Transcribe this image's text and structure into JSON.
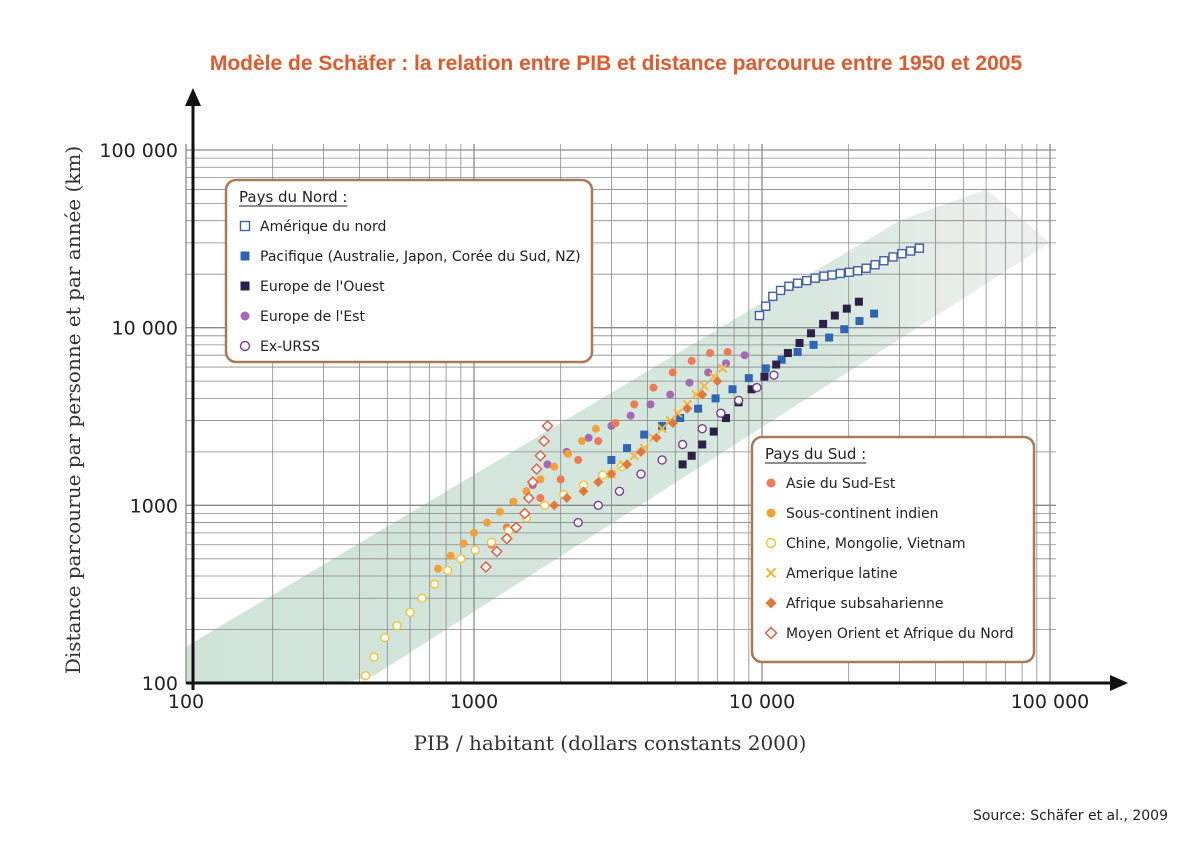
{
  "colors": {
    "title": "#e05a2b",
    "band": "#cfe3d8",
    "grid": "#8a8a8a",
    "legend_border": "#a87a58"
  },
  "source": "Source: Schäfer et al., 2009",
  "chart_data": {
    "type": "scatter",
    "title": "Modèle de Schäfer : la relation entre PIB et distance parcourue entre 1950 et 2005",
    "xlabel": "PIB / habitant (dollars constants 2000)",
    "ylabel": "Distance parcourue par personne et par année (km)",
    "x_scale": "log",
    "y_scale": "log",
    "xlim": [
      100,
      100000
    ],
    "ylim": [
      100,
      100000
    ],
    "grid": true,
    "x_ticks": [
      {
        "value": 100,
        "label": "100"
      },
      {
        "value": 1000,
        "label": "1000"
      },
      {
        "value": 10000,
        "label": "10 000"
      },
      {
        "value": 100000,
        "label": "100 000"
      }
    ],
    "y_ticks": [
      {
        "value": 100,
        "label": "100"
      },
      {
        "value": 1000,
        "label": "1000"
      },
      {
        "value": 10000,
        "label": "10 000"
      },
      {
        "value": 100000,
        "label": "100 000"
      }
    ],
    "band": {
      "lower": [
        [
          100,
          60
        ],
        [
          450,
          110
        ],
        [
          100000,
          30000
        ]
      ],
      "upper": [
        [
          100,
          160
        ],
        [
          30000,
          40000
        ],
        [
          60000,
          60000
        ]
      ]
    },
    "legends": [
      {
        "title": "Pays du Nord :",
        "position": "top-left",
        "series": [
          0,
          1,
          2,
          3,
          4
        ]
      },
      {
        "title": "Pays du Sud :",
        "position": "bottom-right",
        "series": [
          5,
          6,
          7,
          8,
          9,
          10
        ]
      }
    ],
    "series": [
      {
        "name": "Amérique du nord",
        "marker": "square-open",
        "color": "#3f5fa8",
        "points": [
          [
            9800,
            11700
          ],
          [
            10300,
            13200
          ],
          [
            10900,
            15000
          ],
          [
            11600,
            16200
          ],
          [
            12400,
            17100
          ],
          [
            13300,
            17800
          ],
          [
            14300,
            18400
          ],
          [
            15300,
            19000
          ],
          [
            16400,
            19500
          ],
          [
            17500,
            19800
          ],
          [
            18700,
            20200
          ],
          [
            20100,
            20500
          ],
          [
            21500,
            20900
          ],
          [
            23000,
            21600
          ],
          [
            24700,
            22600
          ],
          [
            26500,
            23800
          ],
          [
            28500,
            25000
          ],
          [
            30600,
            26100
          ],
          [
            32800,
            27000
          ],
          [
            35200,
            28000
          ]
        ]
      },
      {
        "name": "Pacifique (Australie, Japon, Corée du Sud, NZ)",
        "marker": "square",
        "color": "#2f66b3",
        "points": [
          [
            3000,
            1800
          ],
          [
            3400,
            2100
          ],
          [
            3900,
            2500
          ],
          [
            4500,
            2800
          ],
          [
            5200,
            3100
          ],
          [
            6000,
            3500
          ],
          [
            6900,
            4000
          ],
          [
            7900,
            4500
          ],
          [
            9000,
            5200
          ],
          [
            10300,
            5900
          ],
          [
            11700,
            6600
          ],
          [
            13300,
            7300
          ],
          [
            15100,
            8000
          ],
          [
            17100,
            8800
          ],
          [
            19300,
            9800
          ],
          [
            21800,
            10900
          ],
          [
            24500,
            12000
          ]
        ]
      },
      {
        "name": "Europe de l'Ouest",
        "marker": "square",
        "color": "#2b2148",
        "points": [
          [
            5300,
            1700
          ],
          [
            5700,
            1900
          ],
          [
            6200,
            2200
          ],
          [
            6800,
            2600
          ],
          [
            7500,
            3100
          ],
          [
            8300,
            3800
          ],
          [
            9200,
            4500
          ],
          [
            10200,
            5300
          ],
          [
            11200,
            6200
          ],
          [
            12300,
            7200
          ],
          [
            13500,
            8200
          ],
          [
            14800,
            9300
          ],
          [
            16300,
            10500
          ],
          [
            17900,
            11700
          ],
          [
            19700,
            12800
          ],
          [
            21700,
            14000
          ]
        ]
      },
      {
        "name": "Europe de l'Est",
        "marker": "circle",
        "color": "#a868b4",
        "points": [
          [
            1600,
            1300
          ],
          [
            1800,
            1700
          ],
          [
            2100,
            2000
          ],
          [
            2500,
            2400
          ],
          [
            3000,
            2800
          ],
          [
            3500,
            3200
          ],
          [
            4100,
            3700
          ],
          [
            4800,
            4200
          ],
          [
            5600,
            4900
          ],
          [
            6500,
            5600
          ],
          [
            7500,
            6300
          ],
          [
            8700,
            7000
          ]
        ]
      },
      {
        "name": "Ex-URSS",
        "marker": "circle-open",
        "color": "#7a3a96",
        "points": [
          [
            2300,
            800
          ],
          [
            2700,
            1000
          ],
          [
            3200,
            1200
          ],
          [
            3800,
            1500
          ],
          [
            4500,
            1800
          ],
          [
            5300,
            2200
          ],
          [
            6200,
            2700
          ],
          [
            7200,
            3300
          ],
          [
            8300,
            3900
          ],
          [
            9600,
            4600
          ],
          [
            11000,
            5400
          ]
        ]
      },
      {
        "name": "Asie du Sud-Est",
        "marker": "circle",
        "color": "#f07a54",
        "points": [
          [
            1150,
            600
          ],
          [
            1300,
            750
          ],
          [
            1500,
            900
          ],
          [
            1700,
            1100
          ],
          [
            2000,
            1400
          ],
          [
            2300,
            1800
          ],
          [
            2700,
            2300
          ],
          [
            3100,
            2900
          ],
          [
            3600,
            3700
          ],
          [
            4200,
            4600
          ],
          [
            4900,
            5600
          ],
          [
            5700,
            6500
          ],
          [
            6600,
            7200
          ],
          [
            7600,
            7300
          ]
        ]
      },
      {
        "name": "Sous-continent indien",
        "marker": "circle",
        "color": "#f2a03a",
        "points": [
          [
            750,
            440
          ],
          [
            830,
            520
          ],
          [
            920,
            610
          ],
          [
            1000,
            700
          ],
          [
            1110,
            800
          ],
          [
            1230,
            920
          ],
          [
            1370,
            1050
          ],
          [
            1520,
            1200
          ],
          [
            1700,
            1400
          ],
          [
            1900,
            1650
          ],
          [
            2120,
            1950
          ],
          [
            2370,
            2300
          ],
          [
            2650,
            2700
          ]
        ]
      },
      {
        "name": "Chine, Mongolie, Vietnam",
        "marker": "circle-open",
        "color": "#f2c23a",
        "points": [
          [
            420,
            110
          ],
          [
            450,
            140
          ],
          [
            490,
            180
          ],
          [
            540,
            210
          ],
          [
            600,
            250
          ],
          [
            660,
            300
          ],
          [
            730,
            360
          ],
          [
            810,
            430
          ],
          [
            900,
            500
          ],
          [
            1010,
            560
          ],
          [
            1150,
            620
          ],
          [
            1320,
            720
          ],
          [
            1520,
            850
          ],
          [
            1760,
            1000
          ],
          [
            2050,
            1150
          ],
          [
            2400,
            1300
          ],
          [
            2800,
            1480
          ],
          [
            3250,
            1650
          ]
        ]
      },
      {
        "name": "Amerique latine",
        "marker": "x",
        "color": "#f4b63c",
        "points": [
          [
            3000,
            1500
          ],
          [
            3300,
            1700
          ],
          [
            3600,
            1900
          ],
          [
            3900,
            2100
          ],
          [
            4200,
            2400
          ],
          [
            4500,
            2700
          ],
          [
            4800,
            3000
          ],
          [
            5100,
            3300
          ],
          [
            5500,
            3700
          ],
          [
            5900,
            4200
          ],
          [
            6300,
            4700
          ],
          [
            6800,
            5300
          ],
          [
            7300,
            5900
          ]
        ]
      },
      {
        "name": "Afrique subsaharienne",
        "marker": "diamond",
        "color": "#e07a3c",
        "points": [
          [
            1900,
            1000
          ],
          [
            2100,
            1100
          ],
          [
            2400,
            1200
          ],
          [
            2700,
            1350
          ],
          [
            3000,
            1500
          ],
          [
            3400,
            1700
          ],
          [
            3800,
            2000
          ],
          [
            4300,
            2400
          ],
          [
            4900,
            2900
          ],
          [
            5500,
            3500
          ],
          [
            6200,
            4200
          ],
          [
            7000,
            5000
          ]
        ]
      },
      {
        "name": "Moyen Orient et Afrique du Nord",
        "marker": "diamond-open",
        "color": "#e8553a",
        "points": [
          [
            1100,
            450
          ],
          [
            1200,
            550
          ],
          [
            1300,
            650
          ],
          [
            1400,
            750
          ],
          [
            1500,
            900
          ],
          [
            1550,
            1100
          ],
          [
            1600,
            1350
          ],
          [
            1650,
            1600
          ],
          [
            1700,
            1900
          ],
          [
            1750,
            2300
          ],
          [
            1800,
            2800
          ]
        ]
      }
    ]
  }
}
